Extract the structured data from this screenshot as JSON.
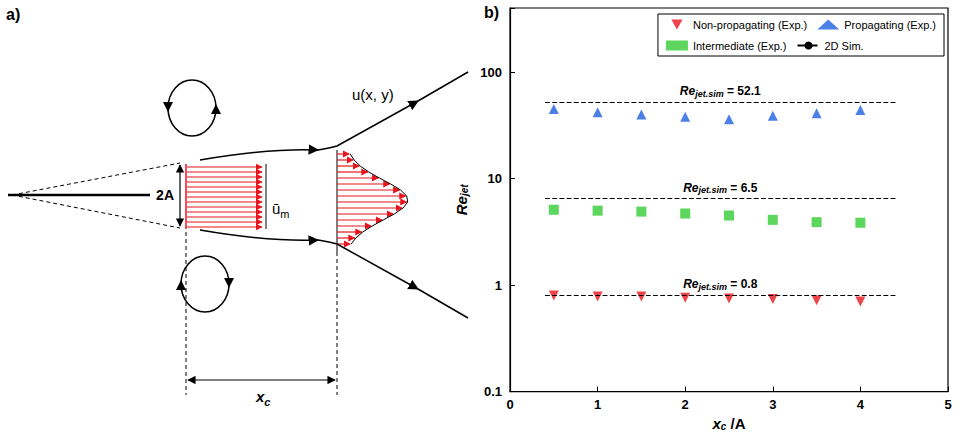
{
  "panel_a": {
    "label": "a)",
    "width_label": "2A",
    "mean_velocity": {
      "base": "ū",
      "sub": "m"
    },
    "profile": "u(x, y)",
    "distance": {
      "base": "x",
      "sub": "c"
    }
  },
  "chart_data": {
    "panel_label": "b)",
    "type": "scatter",
    "x_label": {
      "base": "x",
      "sub": "c",
      "rest": " /A"
    },
    "y_label": {
      "base": "Re",
      "sub": "jet",
      "rest": ""
    },
    "xlim": [
      0,
      5
    ],
    "xticks": [
      0,
      1,
      2,
      3,
      4,
      5
    ],
    "ylim": [
      0.1,
      400
    ],
    "yticks": [
      0.1,
      1,
      10,
      100
    ],
    "log": "y",
    "grid": false,
    "legend": "upper right",
    "series": [
      {
        "name": "Non-propagating (Exp.)",
        "type": "scatter",
        "color": "#e8141c",
        "marker": "triangle-down",
        "x": [
          0.5,
          1,
          1.5,
          2,
          2.5,
          3,
          3.5,
          4
        ],
        "values": [
          0.8,
          0.78,
          0.78,
          0.76,
          0.75,
          0.74,
          0.72,
          0.7
        ]
      },
      {
        "name": "Propagating (Exp.)",
        "type": "scatter",
        "color": "#2060e0",
        "marker": "triangle",
        "x": [
          0.5,
          1,
          1.5,
          2,
          2.5,
          3,
          3.5,
          4
        ],
        "values": [
          45,
          42,
          40,
          38,
          36,
          39,
          41,
          44
        ]
      },
      {
        "name": "Intermediate (Exp.)",
        "type": "scatter",
        "color": "#33cc33",
        "marker": "square",
        "x": [
          0.5,
          1,
          1.5,
          2,
          2.5,
          3,
          3.5,
          4
        ],
        "values": [
          5.1,
          5.0,
          4.9,
          4.7,
          4.5,
          4.1,
          3.9,
          3.85
        ]
      },
      {
        "name": "2D Sim.",
        "type": "line",
        "color": "#000000",
        "line_style": "dashed",
        "lines": [
          {
            "x": [
              0.4,
              4.4
            ],
            "value": 52.1,
            "label": {
              "base": "Re",
              "sub": "jet.sim",
              "rest": " = 52.1"
            }
          },
          {
            "x": [
              0.4,
              4.4
            ],
            "value": 6.5,
            "label": {
              "base": "Re",
              "sub": "jet.sim",
              "rest": " = 6.5"
            }
          },
          {
            "x": [
              0.4,
              4.4
            ],
            "value": 0.8,
            "label": {
              "base": "Re",
              "sub": "jet.sim",
              "rest": " = 0.8"
            }
          }
        ]
      }
    ]
  }
}
